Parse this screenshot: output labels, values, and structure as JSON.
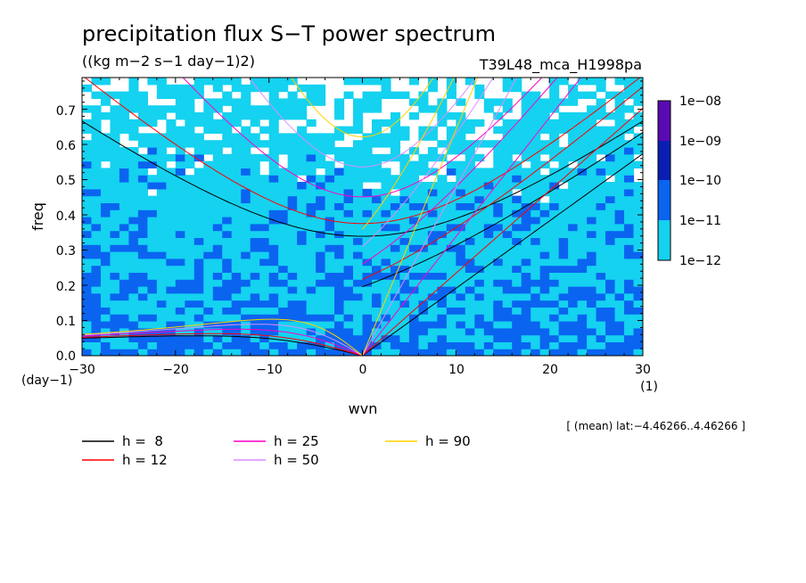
{
  "header": {
    "title": "precipitation flux S−T power spectrum",
    "units": "((kg m−2 s−1 day−1)2)",
    "experiment": "T39L48_mca_H1998pa"
  },
  "axes": {
    "ylabel": "freq",
    "xlabel": "wvn",
    "y_unit": "(day−1)",
    "x_unit": "(1)",
    "x_ticks": [
      "−30",
      "−20",
      "−10",
      "0",
      "10",
      "20",
      "30"
    ],
    "y_ticks": [
      "0.0",
      "0.1",
      "0.2",
      "0.3",
      "0.4",
      "0.5",
      "0.6",
      "0.7"
    ]
  },
  "footnote": "[ (mean) lat:−4.46266..4.46266 ]",
  "colorbar": {
    "labels": [
      "1e−08",
      "1e−09",
      "1e−10",
      "1e−11",
      "1e−12"
    ],
    "colors": [
      "#5a0ab4",
      "#0a1eb4",
      "#0a64f0",
      "#14d2f0"
    ]
  },
  "legend": [
    {
      "label": "h =  8",
      "color": "#000000"
    },
    {
      "label": "h = 12",
      "color": "#ff0000"
    },
    {
      "label": "h = 25",
      "color": "#ff00c8"
    },
    {
      "label": "h = 50",
      "color": "#dc8cff"
    },
    {
      "label": "h = 90",
      "color": "#ffd200"
    }
  ],
  "chart_data": {
    "type": "heatmap",
    "title": "precipitation flux S−T power spectrum",
    "xlabel": "wvn",
    "ylabel": "freq",
    "xlim": [
      -30,
      30
    ],
    "ylim": [
      0,
      0.79
    ],
    "colorscale": "log10 power, levels 1e-12, 1e-11, 1e-10, 1e-09, 1e-08",
    "equivalent_depths_m": [
      8,
      12,
      25,
      50,
      90
    ],
    "dispersion_curves": {
      "kelvin": {
        "color_by_h": true
      },
      "inertia_gravity_n1": {
        "min_freq_by_h": {
          "8": 0.335,
          "12": 0.37,
          "25": 0.445,
          "50": 0.53,
          "90": 0.615
        }
      },
      "equatorial_rossby_n1": {
        "max_freq_by_h": {
          "8": 0.062,
          "12": 0.072,
          "25": 0.085,
          "50": 0.095,
          "90": 0.105
        }
      }
    }
  }
}
